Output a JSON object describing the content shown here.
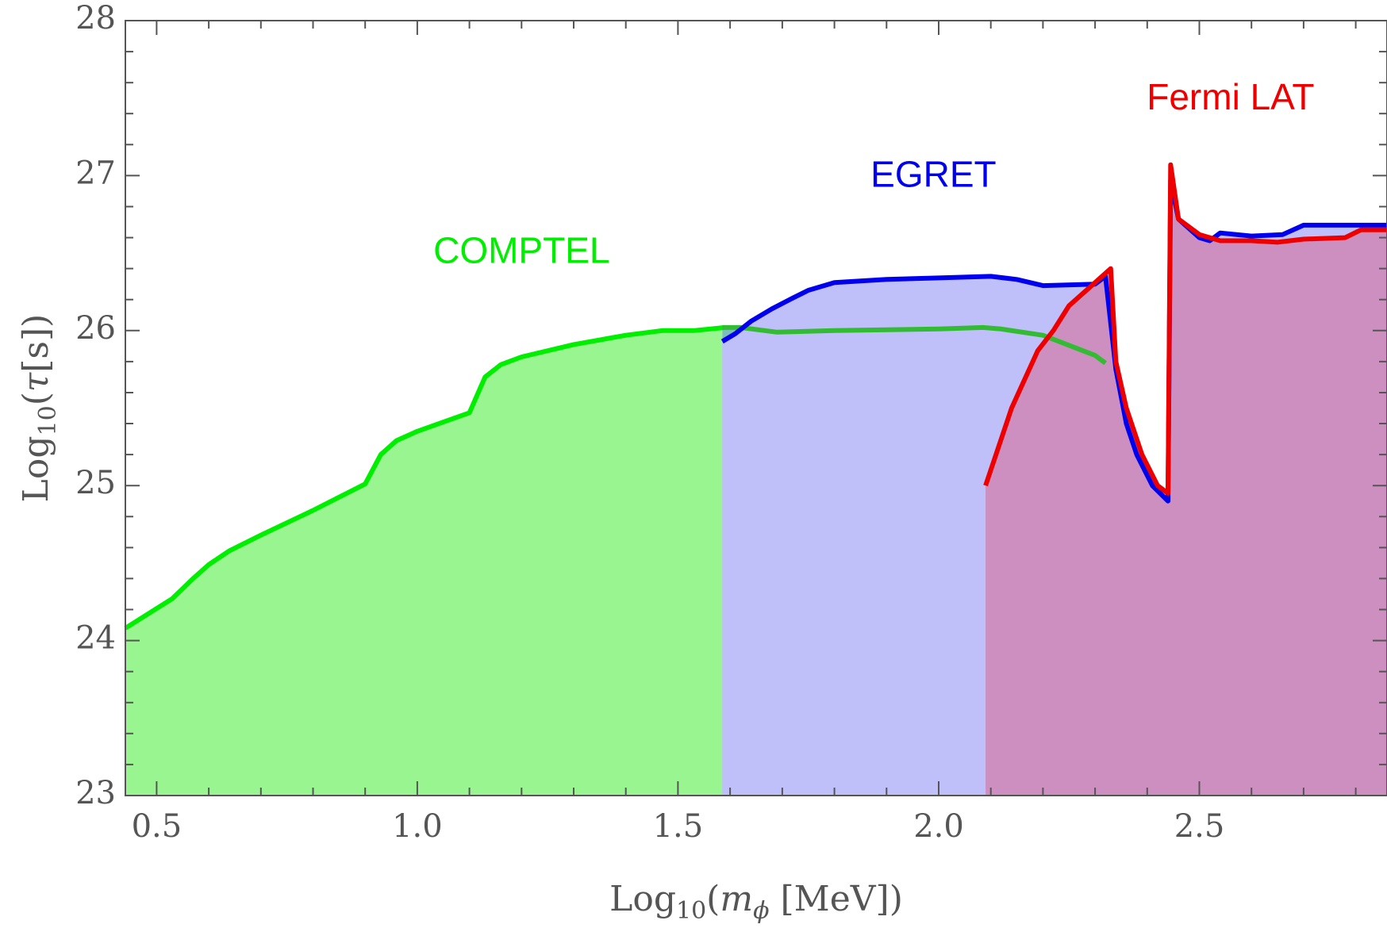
{
  "chart_data": {
    "type": "area",
    "title": "",
    "xlabel": "Log10(m_phi [MeV])",
    "ylabel": "Log10(tau[s])",
    "xlabel_parts": {
      "pre": "Log",
      "sub": "10",
      "mid": "(",
      "var": "m",
      "varsub": "ϕ",
      "post": " [MeV])"
    },
    "ylabel_parts": {
      "pre": "Log",
      "sub": "10",
      "mid": "(",
      "var": "τ",
      "post": "[s])"
    },
    "xlim": [
      0.44,
      2.86
    ],
    "ylim": [
      23,
      28
    ],
    "xticks": [
      {
        "value": 0.5,
        "label": "0.5"
      },
      {
        "value": 1.0,
        "label": "1.0"
      },
      {
        "value": 1.5,
        "label": "1.5"
      },
      {
        "value": 2.0,
        "label": "2.0"
      },
      {
        "value": 2.5,
        "label": "2.5"
      }
    ],
    "yticks": [
      {
        "value": 23,
        "label": "23"
      },
      {
        "value": 24,
        "label": "24"
      },
      {
        "value": 25,
        "label": "25"
      },
      {
        "value": 26,
        "label": "26"
      },
      {
        "value": 27,
        "label": "27"
      },
      {
        "value": 28,
        "label": "28"
      }
    ],
    "grid": false,
    "series": [
      {
        "name": "COMPTEL",
        "color": "#00ee00",
        "fill": "#99f58f",
        "fill_x_end": 1.585,
        "label_pos": [
          1.2,
          26.5
        ],
        "points": [
          [
            0.44,
            24.08
          ],
          [
            0.53,
            24.27
          ],
          [
            0.57,
            24.4
          ],
          [
            0.6,
            24.49
          ],
          [
            0.64,
            24.58
          ],
          [
            0.7,
            24.68
          ],
          [
            0.8,
            24.84
          ],
          [
            0.9,
            25.01
          ],
          [
            0.93,
            25.2
          ],
          [
            0.96,
            25.29
          ],
          [
            1.0,
            25.35
          ],
          [
            1.05,
            25.41
          ],
          [
            1.1,
            25.47
          ],
          [
            1.13,
            25.7
          ],
          [
            1.16,
            25.78
          ],
          [
            1.2,
            25.83
          ],
          [
            1.3,
            25.91
          ],
          [
            1.4,
            25.97
          ],
          [
            1.47,
            26.0
          ],
          [
            1.53,
            26.0
          ],
          [
            1.59,
            26.02
          ]
        ]
      },
      {
        "name": "",
        "color": "#33bb33",
        "fill": "#79c0b8",
        "fill_x_start": 1.585,
        "fill_x_end": 2.085,
        "points": [
          [
            1.585,
            26.02
          ],
          [
            1.62,
            26.02
          ],
          [
            1.69,
            25.99
          ],
          [
            1.8,
            26.0
          ],
          [
            2.0,
            26.01
          ],
          [
            2.085,
            26.02
          ],
          [
            2.12,
            26.01
          ],
          [
            2.2,
            25.97
          ],
          [
            2.3,
            25.84
          ],
          [
            2.32,
            25.79
          ]
        ]
      },
      {
        "name": "EGRET",
        "color": "#0000ee",
        "fill": "#bfbff9",
        "label_pos": [
          1.99,
          26.99
        ],
        "points": [
          [
            1.585,
            25.93
          ],
          [
            1.61,
            25.98
          ],
          [
            1.64,
            26.06
          ],
          [
            1.68,
            26.14
          ],
          [
            1.72,
            26.21
          ],
          [
            1.75,
            26.26
          ],
          [
            1.8,
            26.31
          ],
          [
            1.9,
            26.33
          ],
          [
            2.0,
            26.34
          ],
          [
            2.1,
            26.35
          ],
          [
            2.15,
            26.33
          ],
          [
            2.2,
            26.29
          ],
          [
            2.3,
            26.3
          ],
          [
            2.32,
            26.35
          ],
          [
            2.34,
            25.75
          ],
          [
            2.36,
            25.4
          ],
          [
            2.38,
            25.2
          ],
          [
            2.41,
            25.0
          ],
          [
            2.44,
            24.9
          ],
          [
            2.445,
            26.97
          ],
          [
            2.46,
            26.72
          ],
          [
            2.5,
            26.6
          ],
          [
            2.52,
            26.58
          ],
          [
            2.54,
            26.63
          ],
          [
            2.6,
            26.61
          ],
          [
            2.66,
            26.62
          ],
          [
            2.7,
            26.68
          ],
          [
            2.86,
            26.68
          ]
        ]
      },
      {
        "name": "Fermi LAT",
        "color": "#ee0000",
        "fill": "#cd8fbf",
        "label_pos": [
          2.56,
          27.49
        ],
        "points": [
          [
            2.09,
            25.0
          ],
          [
            2.14,
            25.5
          ],
          [
            2.19,
            25.87
          ],
          [
            2.22,
            26.0
          ],
          [
            2.25,
            26.16
          ],
          [
            2.3,
            26.31
          ],
          [
            2.33,
            26.4
          ],
          [
            2.34,
            25.8
          ],
          [
            2.36,
            25.5
          ],
          [
            2.39,
            25.2
          ],
          [
            2.42,
            25.0
          ],
          [
            2.44,
            24.95
          ],
          [
            2.445,
            27.07
          ],
          [
            2.46,
            26.72
          ],
          [
            2.5,
            26.62
          ],
          [
            2.54,
            26.58
          ],
          [
            2.6,
            26.58
          ],
          [
            2.65,
            26.57
          ],
          [
            2.7,
            26.59
          ],
          [
            2.78,
            26.6
          ],
          [
            2.81,
            26.65
          ],
          [
            2.86,
            26.65
          ]
        ]
      }
    ]
  }
}
